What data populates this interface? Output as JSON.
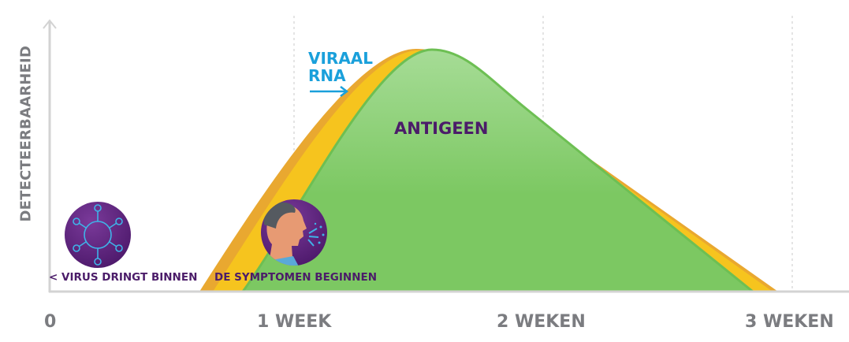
{
  "axes": {
    "y_label": "DETECTEERBAARHEID",
    "x_ticks": [
      "0",
      "1 WEEK",
      "2 WEKEN",
      "3 WEKEN"
    ]
  },
  "series": {
    "viral_rna": {
      "label_line1": "VIRAAL",
      "label_line2": "RNA",
      "color": "#f6c41e",
      "edge_color": "#e9a830"
    },
    "antigen": {
      "label": "ANTIGEEN",
      "color": "#7bc862"
    }
  },
  "events": {
    "virus_enters": {
      "label": "< VIRUS DRINGT BINNEN",
      "icon": "virus-icon"
    },
    "symptoms_begin": {
      "label": "DE SYMPTOMEN BEGINNEN",
      "icon": "coughing-person-icon"
    }
  },
  "colors": {
    "purple": "#4b1c69",
    "blue": "#1aa0db",
    "axis": "#d0d0d0"
  }
}
